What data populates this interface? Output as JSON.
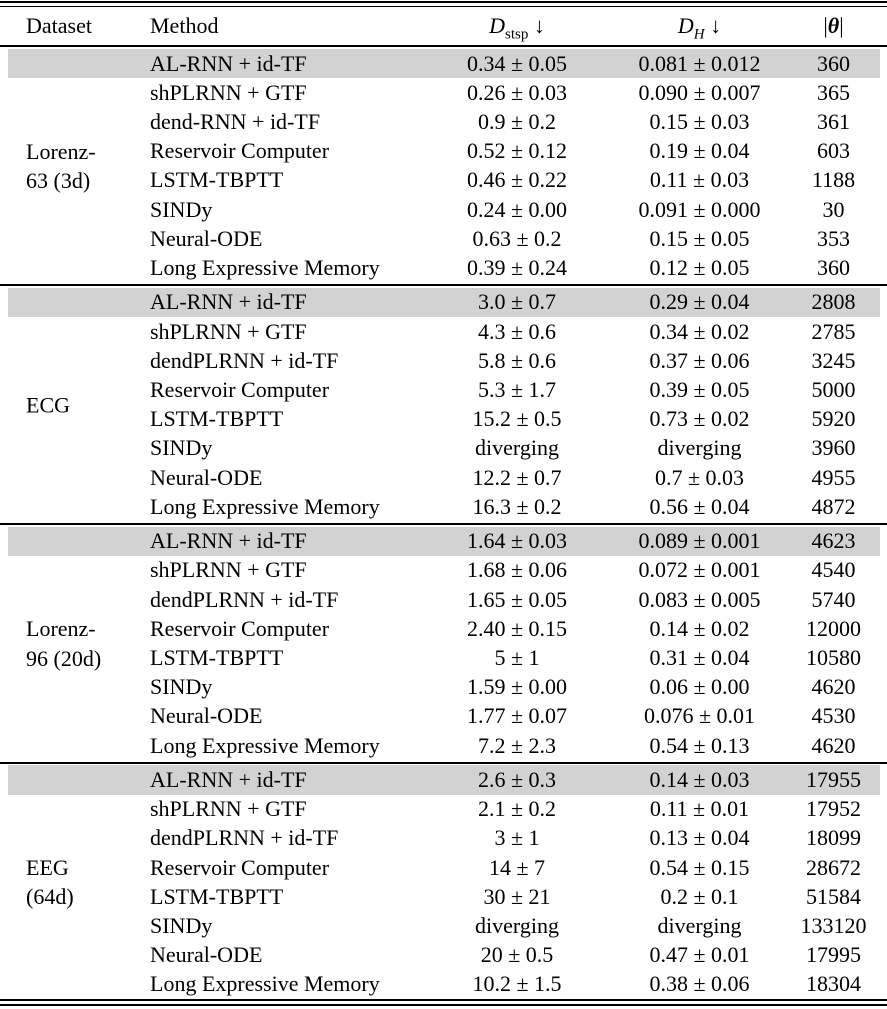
{
  "header": {
    "dataset": "Dataset",
    "method": "Method",
    "dstsp": {
      "base": "D",
      "sub": "stsp",
      "arrow": "↓"
    },
    "dh": {
      "base": "D",
      "sub": "H",
      "arrow": "↓"
    },
    "theta": {
      "open": "|",
      "symbol": "θ",
      "close": "|"
    }
  },
  "groups": [
    {
      "dataset_label": "Lorenz-\n63 (3d)",
      "rows": [
        {
          "method": "AL-RNN + id-TF",
          "dstsp": "0.34 ± 0.05",
          "dh": "0.081 ± 0.012",
          "params": "360",
          "highlight": true
        },
        {
          "method": "shPLRNN + GTF",
          "dstsp": "0.26 ± 0.03",
          "dh": "0.090 ± 0.007",
          "params": "365",
          "highlight": false
        },
        {
          "method": "dend-RNN + id-TF",
          "dstsp": "0.9 ± 0.2",
          "dh": "0.15 ± 0.03",
          "params": "361",
          "highlight": false
        },
        {
          "method": "Reservoir Computer",
          "dstsp": "0.52 ± 0.12",
          "dh": "0.19 ± 0.04",
          "params": "603",
          "highlight": false
        },
        {
          "method": "LSTM-TBPTT",
          "dstsp": "0.46 ± 0.22",
          "dh": "0.11 ± 0.03",
          "params": "1188",
          "highlight": false
        },
        {
          "method": "SINDy",
          "dstsp": "0.24 ± 0.00",
          "dh": "0.091 ± 0.000",
          "params": "30",
          "highlight": false
        },
        {
          "method": "Neural-ODE",
          "dstsp": "0.63 ± 0.2",
          "dh": "0.15 ± 0.05",
          "params": "353",
          "highlight": false
        },
        {
          "method": "Long Expressive Memory",
          "dstsp": "0.39 ± 0.24",
          "dh": "0.12 ± 0.05",
          "params": "360",
          "highlight": false
        }
      ]
    },
    {
      "dataset_label": "ECG",
      "rows": [
        {
          "method": "AL-RNN + id-TF",
          "dstsp": "3.0 ± 0.7",
          "dh": "0.29 ± 0.04",
          "params": "2808",
          "highlight": true
        },
        {
          "method": "shPLRNN + GTF",
          "dstsp": "4.3 ± 0.6",
          "dh": "0.34 ± 0.02",
          "params": "2785",
          "highlight": false
        },
        {
          "method": "dendPLRNN + id-TF",
          "dstsp": "5.8 ± 0.6",
          "dh": "0.37 ± 0.06",
          "params": "3245",
          "highlight": false
        },
        {
          "method": "Reservoir Computer",
          "dstsp": "5.3 ± 1.7",
          "dh": "0.39 ± 0.05",
          "params": "5000",
          "highlight": false
        },
        {
          "method": "LSTM-TBPTT",
          "dstsp": "15.2 ± 0.5",
          "dh": "0.73 ± 0.02",
          "params": "5920",
          "highlight": false
        },
        {
          "method": "SINDy",
          "dstsp": "diverging",
          "dh": "diverging",
          "params": "3960",
          "highlight": false
        },
        {
          "method": "Neural-ODE",
          "dstsp": "12.2 ± 0.7",
          "dh": "0.7 ± 0.03",
          "params": "4955",
          "highlight": false
        },
        {
          "method": "Long Expressive Memory",
          "dstsp": "16.3 ± 0.2",
          "dh": "0.56 ± 0.04",
          "params": "4872",
          "highlight": false
        }
      ]
    },
    {
      "dataset_label": "Lorenz-\n96 (20d)",
      "rows": [
        {
          "method": "AL-RNN + id-TF",
          "dstsp": "1.64 ± 0.03",
          "dh": "0.089 ± 0.001",
          "params": "4623",
          "highlight": true
        },
        {
          "method": "shPLRNN + GTF",
          "dstsp": "1.68 ± 0.06",
          "dh": "0.072 ± 0.001",
          "params": "4540",
          "highlight": false
        },
        {
          "method": "dendPLRNN + id-TF",
          "dstsp": "1.65 ± 0.05",
          "dh": "0.083 ± 0.005",
          "params": "5740",
          "highlight": false
        },
        {
          "method": "Reservoir Computer",
          "dstsp": "2.40 ± 0.15",
          "dh": "0.14 ± 0.02",
          "params": "12000",
          "highlight": false
        },
        {
          "method": "LSTM-TBPTT",
          "dstsp": "5 ± 1",
          "dh": "0.31 ± 0.04",
          "params": "10580",
          "highlight": false
        },
        {
          "method": "SINDy",
          "dstsp": "1.59 ± 0.00",
          "dh": "0.06 ± 0.00",
          "params": "4620",
          "highlight": false
        },
        {
          "method": "Neural-ODE",
          "dstsp": "1.77 ± 0.07",
          "dh": "0.076 ± 0.01",
          "params": "4530",
          "highlight": false
        },
        {
          "method": "Long Expressive Memory",
          "dstsp": "7.2 ± 2.3",
          "dh": "0.54 ± 0.13",
          "params": "4620",
          "highlight": false
        }
      ]
    },
    {
      "dataset_label": "EEG\n(64d)",
      "rows": [
        {
          "method": "AL-RNN + id-TF",
          "dstsp": "2.6 ± 0.3",
          "dh": "0.14 ± 0.03",
          "params": "17955",
          "highlight": true
        },
        {
          "method": "shPLRNN + GTF",
          "dstsp": "2.1 ± 0.2",
          "dh": "0.11 ± 0.01",
          "params": "17952",
          "highlight": false
        },
        {
          "method": "dendPLRNN + id-TF",
          "dstsp": "3 ± 1",
          "dh": "0.13 ± 0.04",
          "params": "18099",
          "highlight": false
        },
        {
          "method": "Reservoir Computer",
          "dstsp": "14 ± 7",
          "dh": "0.54 ± 0.15",
          "params": "28672",
          "highlight": false
        },
        {
          "method": "LSTM-TBPTT",
          "dstsp": "30 ± 21",
          "dh": "0.2 ± 0.1",
          "params": "51584",
          "highlight": false
        },
        {
          "method": "SINDy",
          "dstsp": "diverging",
          "dh": "diverging",
          "params": "133120",
          "highlight": false
        },
        {
          "method": "Neural-ODE",
          "dstsp": "20 ± 0.5",
          "dh": "0.47 ± 0.01",
          "params": "17995",
          "highlight": false
        },
        {
          "method": "Long Expressive Memory",
          "dstsp": "10.2 ± 1.5",
          "dh": "0.38 ± 0.06",
          "params": "18304",
          "highlight": false
        }
      ]
    }
  ],
  "colors": {
    "highlight_row": "#d2d2d2",
    "rule": "#000000",
    "background": "#ffffff",
    "text": "#000000"
  }
}
